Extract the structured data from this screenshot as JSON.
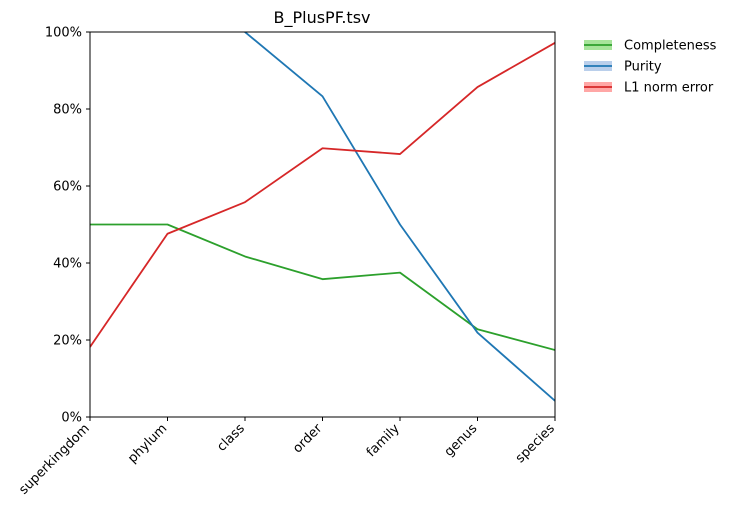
{
  "chart_data": {
    "type": "line",
    "title": "B_PlusPF.tsv",
    "xlabel": "",
    "ylabel": "",
    "categories": [
      "superkingdom",
      "phylum",
      "class",
      "order",
      "family",
      "genus",
      "species"
    ],
    "ylim": [
      0,
      100
    ],
    "yticks": [
      "0%",
      "20%",
      "40%",
      "60%",
      "80%",
      "100%"
    ],
    "yticks_values": [
      0,
      20,
      40,
      60,
      80,
      100
    ],
    "grid": false,
    "legend_position": "outside-top-right",
    "series": [
      {
        "name": "Completeness",
        "color": "#2ca02c",
        "band_color": "#98df8a",
        "values": [
          50.0,
          50.0,
          41.7,
          35.8,
          37.5,
          22.8,
          17.4
        ]
      },
      {
        "name": "Purity",
        "color": "#1f77b4",
        "band_color": "#aec7e8",
        "values": [
          null,
          null,
          100.0,
          83.3,
          50.0,
          21.9,
          4.2
        ]
      },
      {
        "name": "L1 norm error",
        "color": "#d62728",
        "band_color": "#ff9896",
        "values": [
          18.2,
          47.6,
          55.8,
          69.8,
          68.3,
          85.7,
          97.2
        ]
      }
    ]
  }
}
